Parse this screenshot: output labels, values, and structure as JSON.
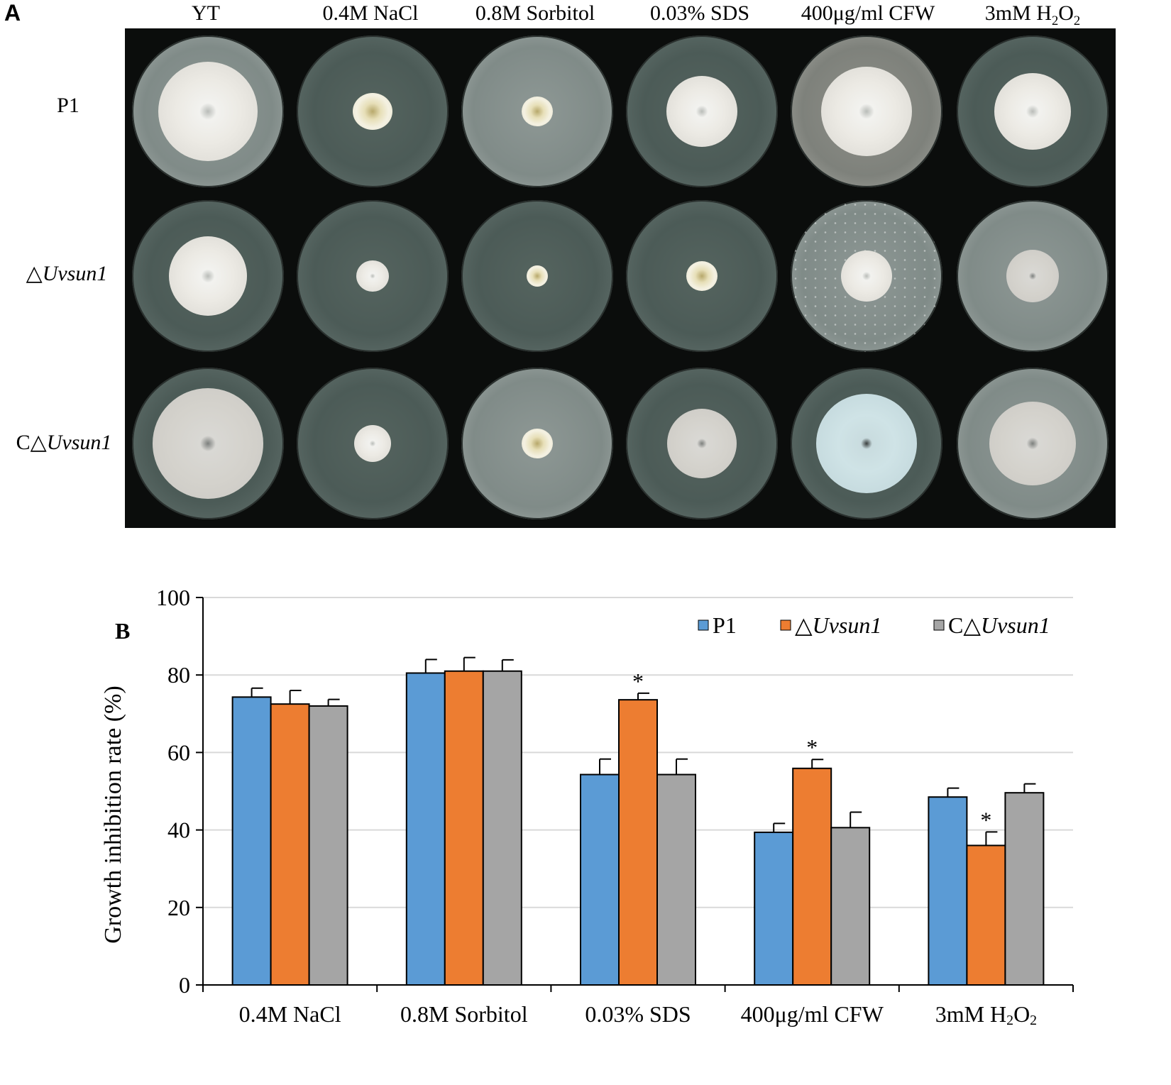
{
  "panel_a": {
    "letter": "A",
    "columns": [
      "YT",
      "0.4M NaCl",
      "0.8M Sorbitol",
      "0.03% SDS",
      "400μg/ml CFW",
      "3mM H2O2"
    ],
    "rows": [
      {
        "prefix": "",
        "name": "P1",
        "italic": ""
      },
      {
        "prefix": "△",
        "name": "",
        "italic": "Uvsun1"
      },
      {
        "prefix": "C△",
        "name": "",
        "italic": "Uvsun1"
      }
    ]
  },
  "chart_data": {
    "type": "bar",
    "panel_letter": "B",
    "ylabel": "Growth inhibition rate (%)",
    "ylim": [
      0,
      100
    ],
    "yticks": [
      0,
      20,
      40,
      60,
      80,
      100
    ],
    "grid": true,
    "legend_position": "top-right",
    "categories": [
      "0.4M NaCl",
      "0.8M Sorbitol",
      "0.03% SDS",
      "400μg/ml CFW",
      "3mM H2O2"
    ],
    "series": [
      {
        "name": "P1",
        "legend_prefix": "",
        "legend_italic": "",
        "color": "#5b9bd5",
        "values": [
          74.3,
          80.5,
          54.3,
          39.4,
          48.5
        ],
        "errors": [
          2.3,
          3.5,
          4.0,
          2.3,
          2.3
        ]
      },
      {
        "name": "△Uvsun1",
        "legend_prefix": "△",
        "legend_italic": "Uvsun1",
        "color": "#ed7d31",
        "values": [
          72.5,
          81.0,
          73.6,
          55.9,
          36.0
        ],
        "errors": [
          3.5,
          3.5,
          1.7,
          2.3,
          3.5
        ]
      },
      {
        "name": "C△Uvsun1",
        "legend_prefix": "C△",
        "legend_italic": "Uvsun1",
        "color": "#a5a5a5",
        "values": [
          72.0,
          81.0,
          54.3,
          40.6,
          49.6
        ],
        "errors": [
          1.7,
          2.9,
          4.0,
          4.0,
          2.3
        ]
      }
    ],
    "significance": [
      {
        "category_index": 2,
        "series_index": 1,
        "label": "*"
      },
      {
        "category_index": 3,
        "series_index": 1,
        "label": "*"
      },
      {
        "category_index": 4,
        "series_index": 1,
        "label": "*"
      }
    ]
  }
}
